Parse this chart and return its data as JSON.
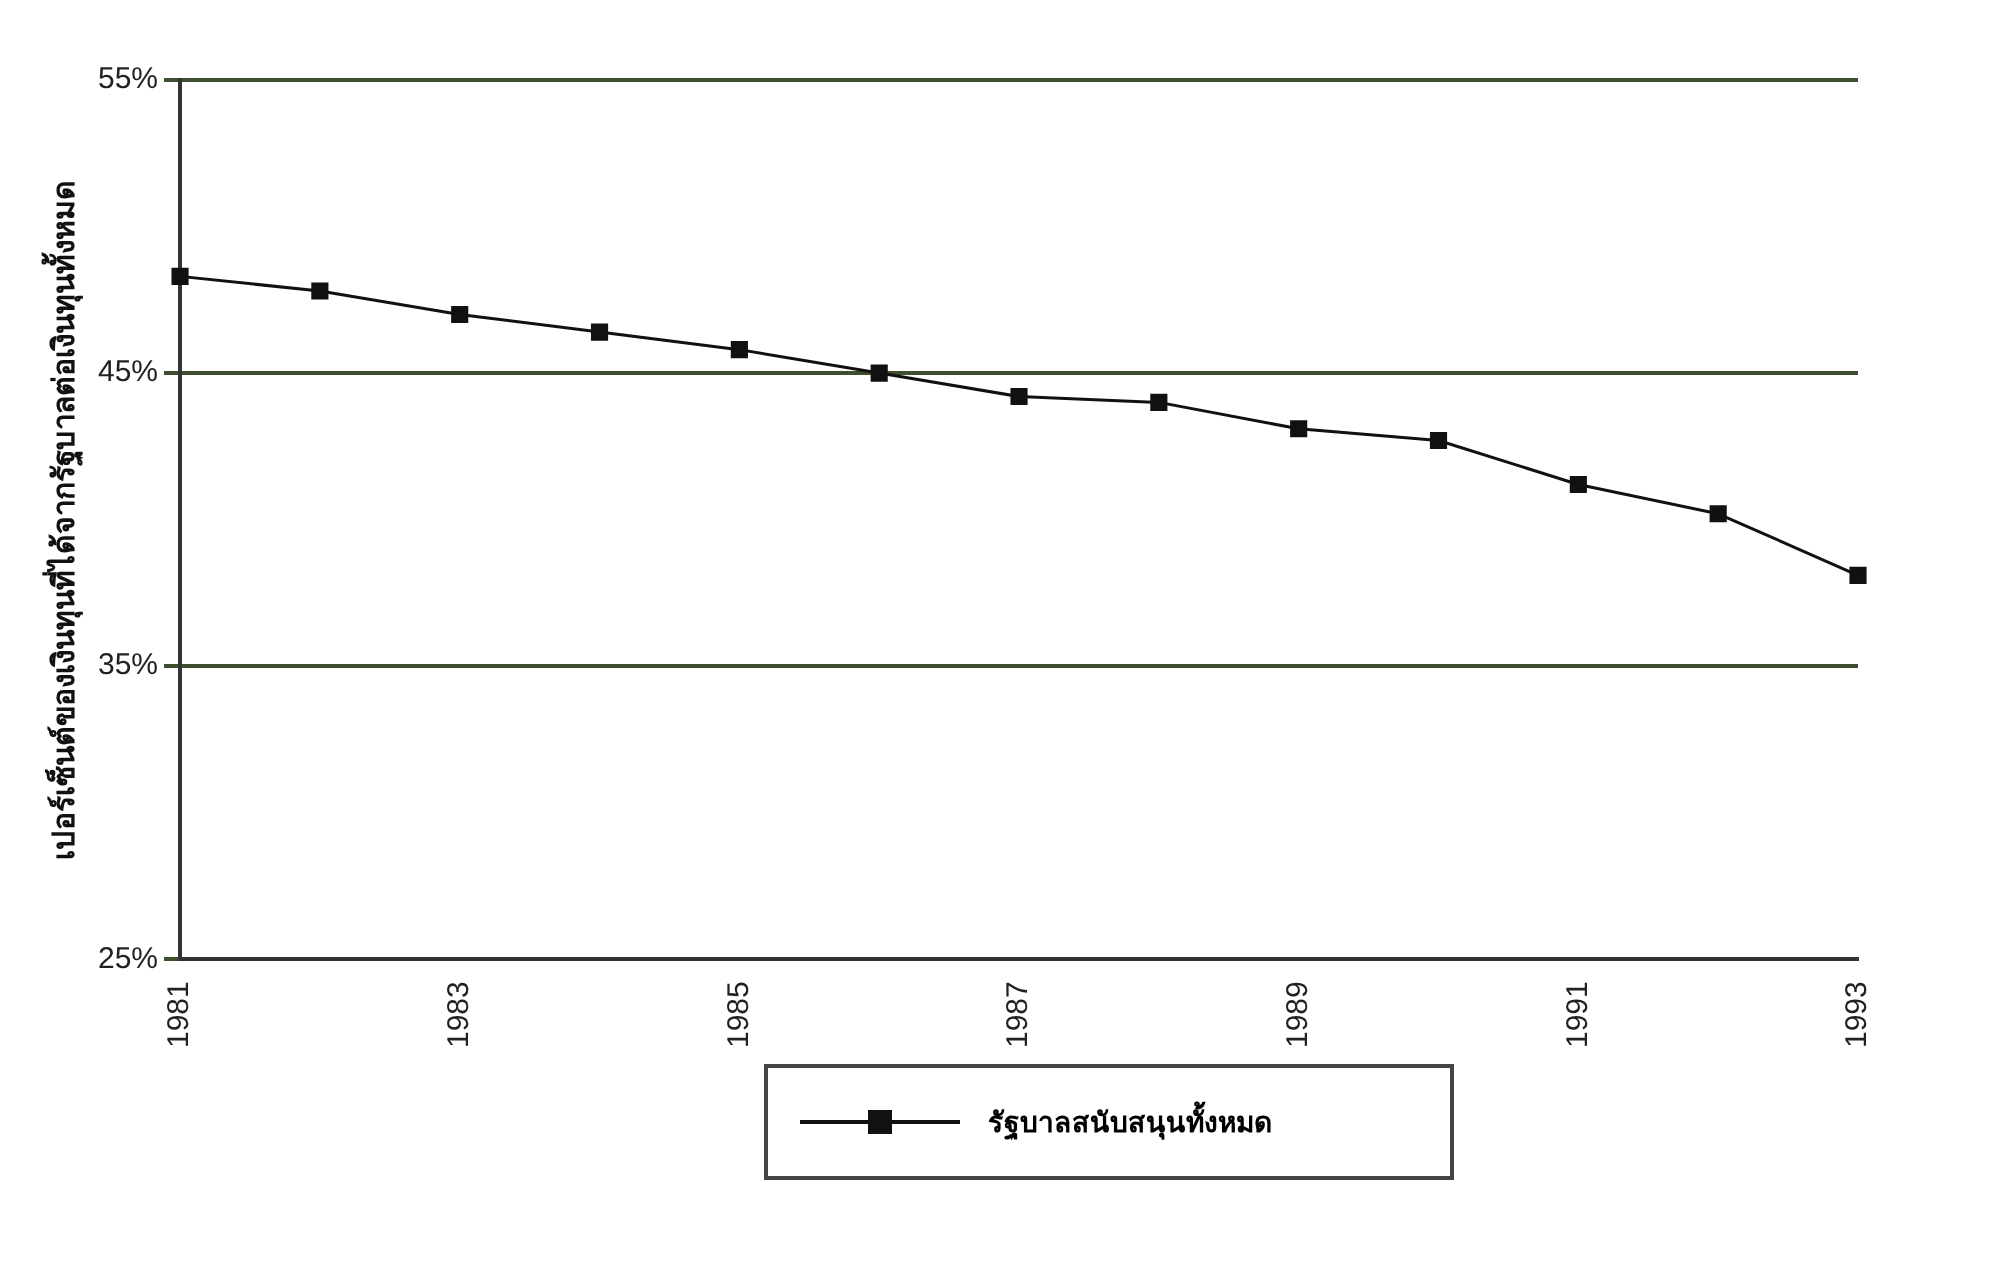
{
  "chart_data": {
    "type": "line",
    "ylabel": "เปอร์เซ็นต์ของเงินทุนที่ได้จากรัฐบาลต่อเงินทุนทั้งหมด",
    "categories": [
      "1981",
      null,
      "1983",
      null,
      "1985",
      null,
      "1987",
      null,
      "1989",
      null,
      "1991",
      null,
      "1993"
    ],
    "series": [
      {
        "name": "รัฐบาลสนับสนุนทั้งหมด",
        "color": "#111111",
        "values": [
          48.3,
          47.8,
          47.0,
          46.4,
          45.8,
          45.0,
          44.2,
          44.0,
          43.1,
          42.7,
          41.2,
          40.2,
          38.1
        ]
      }
    ],
    "ylim": [
      25,
      55
    ],
    "yticks": [
      {
        "value": 25,
        "label": "25%"
      },
      {
        "value": 35,
        "label": "35%"
      },
      {
        "value": 45,
        "label": "45%"
      },
      {
        "value": 55,
        "label": "55%"
      }
    ],
    "grid": "y",
    "legend": "bottom",
    "marker": "square",
    "line_style": "solid"
  }
}
